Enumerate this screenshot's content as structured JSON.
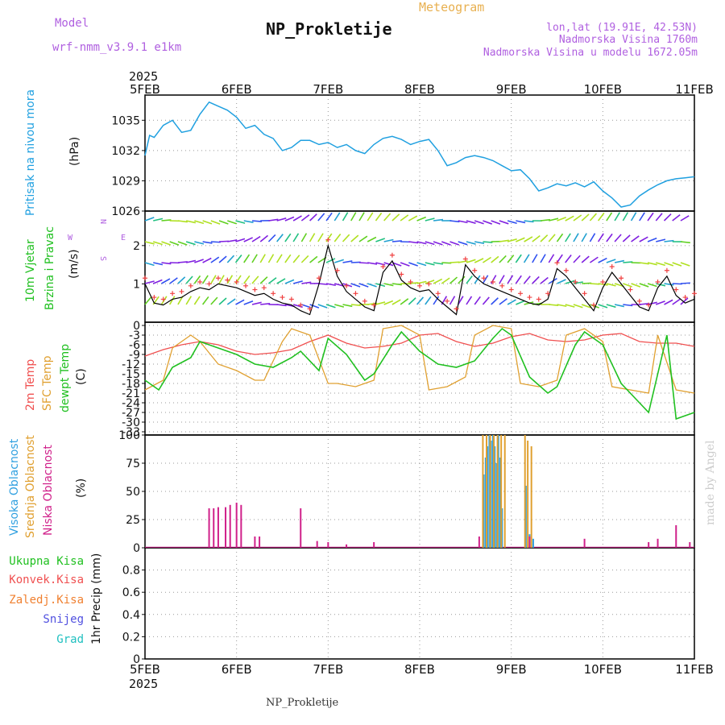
{
  "header": {
    "model_label": "Model",
    "model_name": "wrf-nmm_v3.9.1  e1km",
    "title": "NP_Prokletije",
    "meteogram": "Meteogram",
    "lonlat": "lon,lat (19.91E, 42.53N)",
    "altitude": "Nadmorska Visina 1760m",
    "model_altitude": "Nadmorska Visina u modelu 1672.05m",
    "footer": "NP_Prokletije",
    "credit": "made by Angel",
    "year_top": "2025",
    "year_bottom": "2025"
  },
  "colors": {
    "purple": "#b060e0",
    "orange": "#e8b050",
    "pressure": "#20a0e0",
    "temp2m": "#f05050",
    "sfc": "#e0a030",
    "dewpt": "#20c020",
    "wind_line": "#000000",
    "wind_plus": "#f04040",
    "cloud_high": "#30a0e0",
    "cloud_mid": "#e0a030",
    "cloud_low": "#d0208a"
  },
  "labels": {
    "pressure": [
      "Pritisak na nivou mora",
      "(hPa)"
    ],
    "wind": [
      "10m Vjetar",
      "Brzina i Pravac",
      "(m/s)"
    ],
    "compass": [
      "N",
      "S",
      "W",
      "E"
    ],
    "temp": [
      "2m Temp",
      "SFC Temp",
      "dewpt Temp",
      "(C)"
    ],
    "cloud": [
      "Visoka Oblacnost",
      "Srednja Oblacnost",
      "Niska Oblacnost",
      "(%)"
    ],
    "precip": [
      "Ukupna Kisa",
      "Konvek.Kisa",
      "Zaledj.Kisa",
      "Snijeg",
      "Grad",
      "1hr Precip (mm)"
    ]
  },
  "chart_data": [
    {
      "type": "line",
      "name": "pressure",
      "x_ticks": [
        "5FEB",
        "6FEB",
        "7FEB",
        "8FEB",
        "9FEB",
        "10FEB",
        "11FEB"
      ],
      "ylabel": "(hPa)",
      "ylim": [
        1026,
        1037.5
      ],
      "y_ticks": [
        1026,
        1029,
        1032,
        1035
      ],
      "x": [
        0,
        0.05,
        0.1,
        0.2,
        0.3,
        0.4,
        0.5,
        0.6,
        0.7,
        0.8,
        0.9,
        1.0,
        1.1,
        1.2,
        1.3,
        1.4,
        1.5,
        1.6,
        1.7,
        1.8,
        1.9,
        2.0,
        2.1,
        2.2,
        2.3,
        2.4,
        2.5,
        2.6,
        2.7,
        2.8,
        2.9,
        3.0,
        3.1,
        3.2,
        3.3,
        3.4,
        3.5,
        3.6,
        3.7,
        3.8,
        3.9,
        4.0,
        4.1,
        4.2,
        4.3,
        4.4,
        4.5,
        4.6,
        4.7,
        4.8,
        4.9,
        5.0,
        5.1,
        5.2,
        5.3,
        5.4,
        5.5,
        5.6,
        5.7,
        5.8,
        5.9,
        6.0
      ],
      "values": [
        1031.5,
        1033.5,
        1033.3,
        1034.5,
        1035.0,
        1033.8,
        1034.0,
        1035.6,
        1036.8,
        1036.4,
        1036.0,
        1035.3,
        1034.2,
        1034.5,
        1033.6,
        1033.2,
        1032.0,
        1032.3,
        1033.0,
        1033.0,
        1032.6,
        1032.8,
        1032.3,
        1032.6,
        1032.0,
        1031.7,
        1032.6,
        1033.2,
        1033.4,
        1033.1,
        1032.6,
        1032.9,
        1033.1,
        1032.0,
        1030.5,
        1030.8,
        1031.3,
        1031.5,
        1031.3,
        1031.0,
        1030.5,
        1030.0,
        1030.1,
        1029.2,
        1028.0,
        1028.3,
        1028.7,
        1028.5,
        1028.8,
        1028.4,
        1028.9,
        1028.0,
        1027.3,
        1026.4,
        1026.6,
        1027.5,
        1028.1,
        1028.6,
        1029.0,
        1029.2,
        1029.3,
        1029.4
      ]
    },
    {
      "type": "line",
      "name": "wind",
      "ylabel": "(m/s)",
      "ylim": [
        0,
        2.9
      ],
      "y_ticks": [
        1,
        2
      ],
      "x": [
        0,
        0.1,
        0.2,
        0.3,
        0.4,
        0.5,
        0.6,
        0.7,
        0.8,
        0.9,
        1.0,
        1.1,
        1.2,
        1.3,
        1.4,
        1.5,
        1.6,
        1.7,
        1.8,
        1.9,
        2.0,
        2.1,
        2.2,
        2.3,
        2.4,
        2.5,
        2.6,
        2.7,
        2.8,
        2.9,
        3.0,
        3.1,
        3.2,
        3.3,
        3.4,
        3.5,
        3.6,
        3.7,
        3.8,
        3.9,
        4.0,
        4.1,
        4.2,
        4.3,
        4.4,
        4.5,
        4.6,
        4.7,
        4.8,
        4.9,
        5.0,
        5.1,
        5.2,
        5.3,
        5.4,
        5.5,
        5.6,
        5.7,
        5.8,
        5.9,
        6.0
      ],
      "values": [
        1.0,
        0.5,
        0.45,
        0.6,
        0.65,
        0.8,
        0.9,
        0.85,
        1.0,
        0.95,
        0.9,
        0.8,
        0.7,
        0.75,
        0.6,
        0.5,
        0.45,
        0.3,
        0.2,
        1.0,
        2.0,
        1.2,
        0.8,
        0.6,
        0.4,
        0.3,
        1.3,
        1.6,
        1.1,
        0.9,
        0.8,
        0.85,
        0.6,
        0.4,
        0.2,
        1.5,
        1.2,
        1.0,
        0.9,
        0.8,
        0.7,
        0.6,
        0.5,
        0.45,
        0.6,
        1.4,
        1.2,
        0.9,
        0.6,
        0.3,
        0.9,
        1.3,
        1.0,
        0.7,
        0.4,
        0.3,
        0.9,
        1.2,
        0.7,
        0.5,
        0.6
      ]
    },
    {
      "type": "line",
      "name": "temperature",
      "ylabel": "(C)",
      "ylim": [
        -34,
        1
      ],
      "y_ticks": [
        0,
        -3,
        -6,
        -9,
        -12,
        -15,
        -18,
        -21,
        -24,
        -27,
        -30,
        -33
      ],
      "series": [
        {
          "name": "2m Temp",
          "x": [
            0,
            0.2,
            0.4,
            0.6,
            0.8,
            1.0,
            1.2,
            1.4,
            1.6,
            1.8,
            2.0,
            2.2,
            2.4,
            2.6,
            2.8,
            3.0,
            3.2,
            3.4,
            3.6,
            3.8,
            4.0,
            4.2,
            4.4,
            4.6,
            4.8,
            5.0,
            5.2,
            5.4,
            5.6,
            5.8,
            6.0
          ],
          "values": [
            -9.5,
            -7.5,
            -6,
            -5,
            -6,
            -8,
            -9,
            -8.5,
            -7.5,
            -5,
            -3,
            -5.5,
            -7,
            -6.5,
            -5.5,
            -3,
            -2.5,
            -5,
            -6.5,
            -5.5,
            -3.5,
            -2.5,
            -4.5,
            -5,
            -4.5,
            -3,
            -2.5,
            -5,
            -5.5,
            -5.5,
            -6.5
          ]
        },
        {
          "name": "SFC Temp",
          "x": [
            0,
            0.2,
            0.3,
            0.5,
            0.6,
            0.8,
            1.0,
            1.2,
            1.3,
            1.5,
            1.6,
            1.8,
            2.0,
            2.1,
            2.3,
            2.5,
            2.6,
            2.8,
            3.0,
            3.1,
            3.3,
            3.5,
            3.6,
            3.8,
            4.0,
            4.1,
            4.3,
            4.5,
            4.6,
            4.8,
            5.0,
            5.1,
            5.3,
            5.5,
            5.6,
            5.8,
            6.0
          ],
          "values": [
            -20,
            -17,
            -7,
            -3,
            -5,
            -12,
            -14,
            -17,
            -17,
            -5,
            -1,
            -3,
            -18,
            -18,
            -19,
            -17,
            -1,
            0,
            -3,
            -20,
            -19,
            -16,
            -3,
            0,
            -1,
            -18,
            -19,
            -17,
            -3,
            -1,
            -5,
            -19,
            -20,
            -21,
            -3,
            -20,
            -21
          ]
        },
        {
          "name": "dewpt Temp",
          "x": [
            0,
            0.15,
            0.3,
            0.5,
            0.6,
            0.8,
            1.0,
            1.2,
            1.4,
            1.6,
            1.7,
            1.9,
            2.0,
            2.2,
            2.4,
            2.5,
            2.7,
            2.8,
            3.0,
            3.2,
            3.4,
            3.6,
            3.8,
            3.9,
            4.0,
            4.2,
            4.4,
            4.5,
            4.7,
            4.8,
            5.0,
            5.2,
            5.4,
            5.5,
            5.7,
            5.8,
            6.0
          ],
          "values": [
            -17,
            -20,
            -13,
            -10,
            -5,
            -7,
            -9,
            -12,
            -13,
            -10,
            -8,
            -14,
            -4,
            -9,
            -17,
            -15,
            -6,
            -2,
            -8,
            -12,
            -13,
            -11,
            -4,
            -1,
            -3,
            -16,
            -21,
            -19,
            -6,
            -2,
            -6,
            -18,
            -24,
            -27,
            -3,
            -29,
            -27
          ]
        }
      ]
    },
    {
      "type": "bar",
      "name": "cloud",
      "ylabel": "(%)",
      "ylim": [
        0,
        100
      ],
      "y_ticks": [
        0,
        25,
        50,
        75,
        100
      ],
      "series": [
        {
          "name": "Visoka Oblacnost",
          "x": [
            3.7,
            3.72,
            3.74,
            3.76,
            3.78,
            3.8,
            3.82,
            3.84,
            3.86,
            3.88,
            3.9,
            4.16,
            4.2,
            4.24
          ],
          "values": [
            65,
            80,
            90,
            100,
            95,
            100,
            90,
            75,
            100,
            80,
            35,
            55,
            12,
            8
          ]
        },
        {
          "name": "Srednja Oblacnost",
          "x": [
            3.69,
            3.73,
            3.77,
            3.81,
            3.85,
            3.89,
            3.93,
            4.15,
            4.18,
            4.22
          ],
          "values": [
            100,
            100,
            100,
            100,
            100,
            100,
            100,
            100,
            95,
            90
          ]
        },
        {
          "name": "Niska Oblacnost",
          "x": [
            0.7,
            0.75,
            0.8,
            0.88,
            0.93,
            1.0,
            1.05,
            1.2,
            1.25,
            1.7,
            1.88,
            2.0,
            2.2,
            2.5,
            3.65,
            4.2,
            4.8,
            5.5,
            5.6,
            5.8,
            5.95
          ],
          "values": [
            35,
            35,
            36,
            36,
            38,
            40,
            38,
            10,
            10,
            35,
            6,
            5,
            3,
            5,
            10,
            10,
            8,
            5,
            8,
            20,
            5
          ]
        }
      ]
    },
    {
      "type": "bar",
      "name": "precipitation",
      "ylabel": "1hr Precip (mm)",
      "ylim": [
        0,
        1
      ],
      "y_ticks": [
        0,
        0.2,
        0.4,
        0.6,
        0.8
      ],
      "series": []
    }
  ]
}
